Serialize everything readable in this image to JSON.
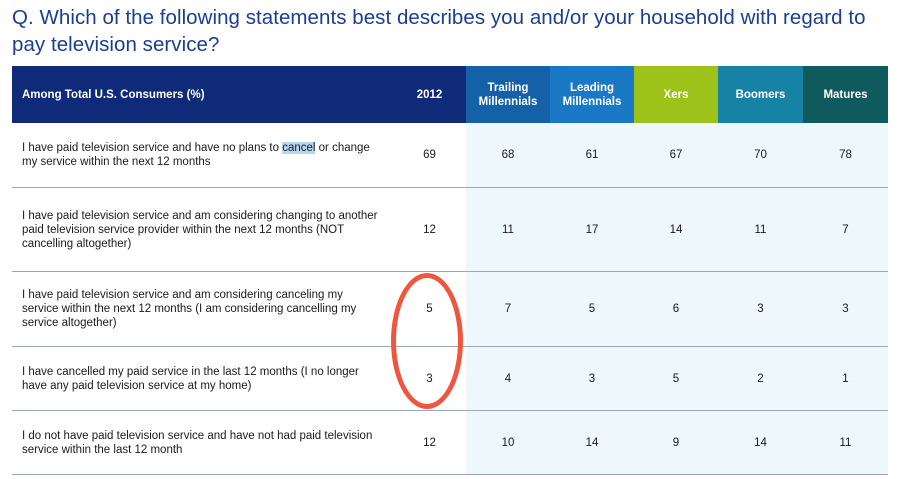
{
  "question": "Q. Which of the following statements best describes you and/or your household with regard to pay television service?",
  "table": {
    "headers": [
      {
        "label": "Among Total U.S. Consumers (%)",
        "color": "#0f2a78"
      },
      {
        "label": "2012",
        "color": "#0f2a78"
      },
      {
        "label": "Trailing Millennials",
        "color": "#1461a8"
      },
      {
        "label": "Leading Millennials",
        "color": "#1a78c4"
      },
      {
        "label": "Xers",
        "color": "#9dc31b"
      },
      {
        "label": "Boomers",
        "color": "#1682a5"
      },
      {
        "label": "Matures",
        "color": "#0e5a5c"
      }
    ],
    "rows": [
      {
        "statement_parts": [
          "I have paid television service and have no plans to ",
          "cancel",
          " or change my service within the next 12 months"
        ],
        "values": [
          "69",
          "68",
          "61",
          "67",
          "70",
          "78"
        ]
      },
      {
        "statement": "I have paid television service and am considering changing to another paid television service provider within the next 12 months (NOT cancelling altogether)",
        "values": [
          "12",
          "11",
          "17",
          "14",
          "11",
          "7"
        ]
      },
      {
        "statement": "I have paid television service and am considering canceling my service within the next 12 months (I am considering cancelling my service altogether)",
        "values": [
          "5",
          "7",
          "5",
          "6",
          "3",
          "3"
        ]
      },
      {
        "statement": "I have cancelled my paid service in the last 12 months (I no longer have any paid television service at my home)",
        "values": [
          "3",
          "4",
          "3",
          "5",
          "2",
          "1"
        ]
      },
      {
        "statement": "I do not have paid television service and have not had paid television service within the last 12 month",
        "values": [
          "12",
          "10",
          "14",
          "9",
          "14",
          "11"
        ]
      }
    ]
  },
  "annotation": {
    "color": "#f0553e"
  }
}
